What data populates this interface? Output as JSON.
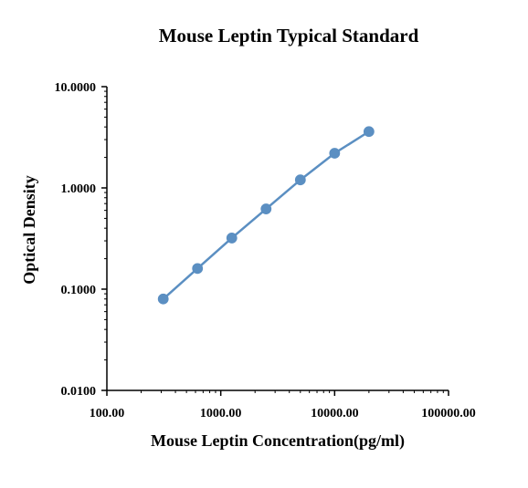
{
  "chart_data": {
    "type": "line",
    "title": "Mouse Leptin Typical Standard",
    "xlabel": "Mouse Leptin Concentration(pg/ml)",
    "ylabel": "Optical Density",
    "xscale": "log",
    "yscale": "log",
    "xlim": [
      100,
      100000
    ],
    "ylim": [
      0.01,
      10
    ],
    "xticks": [
      "100.00",
      "1000.00",
      "10000.00",
      "100000.00"
    ],
    "yticks": [
      "0.0100",
      "0.1000",
      "1.0000",
      "10.0000"
    ],
    "grid": false,
    "series": [
      {
        "x": [
          312.5,
          625,
          1250,
          2500,
          5000,
          10000,
          20000
        ],
        "values": [
          0.08,
          0.16,
          0.32,
          0.62,
          1.2,
          2.2,
          3.6
        ],
        "color": "#5b8fc2"
      }
    ]
  }
}
